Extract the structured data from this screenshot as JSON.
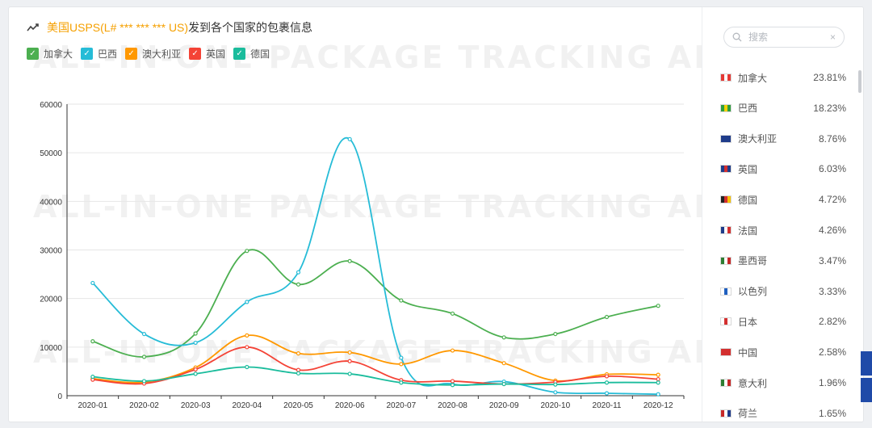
{
  "title": {
    "highlight": "美国USPS(L# *** *** *** US)",
    "rest": "发到各个国家的包裹信息"
  },
  "watermark": {
    "line1": "ALL-IN-ONE PACKAGE TRACKING   ALL-IN-ONE PA",
    "line2": "ALL-IN-ONE PACKAGE TRACKING   ALL-IN-ONE PA",
    "line3": "ALL-IN-ONE PACKAGE TRACKING   ALL-IN-ONE PA"
  },
  "search": {
    "placeholder": "搜索",
    "clear": "×"
  },
  "chart_data": {
    "type": "line",
    "title": "美国USPS(L# *** *** *** US)发到各个国家的包裹信息",
    "categories": [
      "2020-01",
      "2020-02",
      "2020-03",
      "2020-04",
      "2020-05",
      "2020-06",
      "2020-07",
      "2020-08",
      "2020-09",
      "2020-10",
      "2020-11",
      "2020-12"
    ],
    "ylim": [
      0,
      60000
    ],
    "yticks": [
      0,
      10000,
      20000,
      30000,
      40000,
      50000,
      60000
    ],
    "ytick_labels": [
      "0",
      "10000",
      "20000",
      "30000",
      "40000",
      "50000",
      "60000"
    ],
    "grid": true,
    "legend_position": "top-left",
    "series": [
      {
        "name": "加拿大",
        "color": "#4caf50",
        "values": [
          11200,
          8000,
          12800,
          29800,
          22900,
          27700,
          19600,
          16900,
          12000,
          12700,
          16200,
          18500
        ]
      },
      {
        "name": "巴西",
        "color": "#26bcd7",
        "values": [
          23200,
          12700,
          10900,
          19300,
          25400,
          52800,
          7800,
          2400,
          2900,
          700,
          500,
          300
        ]
      },
      {
        "name": "澳大利亚",
        "color": "#ff9800",
        "values": [
          3500,
          2800,
          5800,
          12400,
          8700,
          8900,
          6500,
          9300,
          6700,
          3100,
          4400,
          4300
        ]
      },
      {
        "name": "英国",
        "color": "#f44336",
        "values": [
          3300,
          2500,
          5400,
          10000,
          5300,
          7100,
          3200,
          3000,
          2400,
          2800,
          4000,
          3400
        ]
      },
      {
        "name": "德国",
        "color": "#1abc9c",
        "values": [
          3900,
          3000,
          4500,
          5900,
          4600,
          4500,
          2700,
          2200,
          2400,
          2300,
          2700,
          2700
        ]
      }
    ]
  },
  "countries": [
    {
      "name": "加拿大",
      "pct": "23.81%",
      "flag": [
        "#e53935",
        "#ffffff",
        "#e53935"
      ]
    },
    {
      "name": "巴西",
      "pct": "18.23%",
      "flag": [
        "#2e9e3f",
        "#f5d000",
        "#2e9e3f"
      ]
    },
    {
      "name": "澳大利亚",
      "pct": "8.76%",
      "flag": [
        "#1f3c8a",
        "#1f3c8a",
        "#1f3c8a"
      ]
    },
    {
      "name": "英国",
      "pct": "6.03%",
      "flag": [
        "#1f3c8a",
        "#d32f2f",
        "#1f3c8a"
      ]
    },
    {
      "name": "德国",
      "pct": "4.72%",
      "flag": [
        "#222222",
        "#d32f2f",
        "#f5c200"
      ]
    },
    {
      "name": "法国",
      "pct": "4.26%",
      "flag": [
        "#1f3c8a",
        "#ffffff",
        "#d32f2f"
      ]
    },
    {
      "name": "墨西哥",
      "pct": "3.47%",
      "flag": [
        "#2e7d32",
        "#ffffff",
        "#c62828"
      ]
    },
    {
      "name": "以色列",
      "pct": "3.33%",
      "flag": [
        "#ffffff",
        "#1f5fbf",
        "#ffffff"
      ]
    },
    {
      "name": "日本",
      "pct": "2.82%",
      "flag": [
        "#ffffff",
        "#d32f2f",
        "#ffffff"
      ]
    },
    {
      "name": "中国",
      "pct": "2.58%",
      "flag": [
        "#d32f2f",
        "#d32f2f",
        "#d32f2f"
      ]
    },
    {
      "name": "意大利",
      "pct": "1.96%",
      "flag": [
        "#2e7d32",
        "#ffffff",
        "#c62828"
      ]
    },
    {
      "name": "荷兰",
      "pct": "1.65%",
      "flag": [
        "#c62828",
        "#ffffff",
        "#1f3c8a"
      ]
    }
  ]
}
